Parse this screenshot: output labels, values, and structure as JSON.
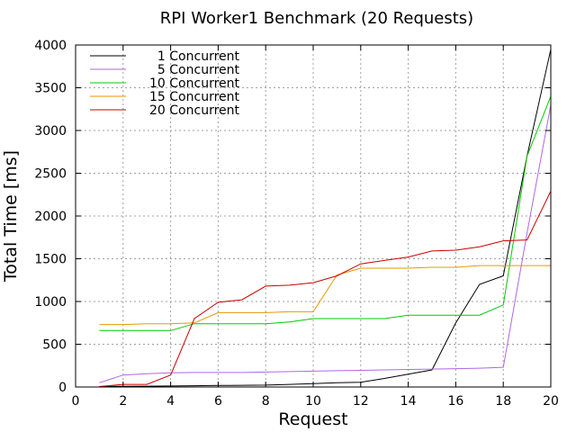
{
  "chart_data": {
    "type": "line",
    "title": "RPI Worker1 Benchmark (20 Requests)",
    "xlabel": "Request",
    "ylabel": "Total Time [ms]",
    "xlim": [
      0,
      20
    ],
    "ylim": [
      0,
      4000
    ],
    "xticks": [
      0,
      2,
      4,
      6,
      8,
      10,
      12,
      14,
      16,
      18,
      20
    ],
    "yticks": [
      0,
      500,
      1000,
      1500,
      2000,
      2500,
      3000,
      3500,
      4000
    ],
    "grid": true,
    "legend_position": "top-left",
    "x": [
      1,
      2,
      3,
      4,
      5,
      6,
      7,
      8,
      9,
      10,
      11,
      12,
      13,
      14,
      15,
      16,
      17,
      18,
      19,
      20
    ],
    "series": [
      {
        "name": "1 Concurrent",
        "color": "#000000",
        "values": [
          5,
          8,
          10,
          12,
          15,
          18,
          20,
          22,
          30,
          40,
          50,
          55,
          100,
          150,
          200,
          750,
          1200,
          1300,
          2700,
          3950
        ]
      },
      {
        "name": "5 Concurrent",
        "color": "#b266e6",
        "values": [
          50,
          140,
          155,
          165,
          170,
          170,
          170,
          175,
          180,
          185,
          190,
          195,
          200,
          205,
          210,
          215,
          220,
          230,
          1800,
          3300
        ]
      },
      {
        "name": "10 Concurrent",
        "color": "#00cc00",
        "values": [
          660,
          660,
          660,
          660,
          740,
          740,
          740,
          740,
          760,
          800,
          800,
          800,
          800,
          840,
          840,
          840,
          840,
          960,
          2700,
          3400
        ]
      },
      {
        "name": "15 Concurrent",
        "color": "#e69900",
        "values": [
          730,
          730,
          740,
          740,
          750,
          870,
          870,
          870,
          880,
          880,
          1310,
          1390,
          1390,
          1390,
          1400,
          1400,
          1420,
          1420,
          1420,
          1420
        ]
      },
      {
        "name": "20 Concurrent",
        "color": "#cc0000",
        "values": [
          5,
          30,
          30,
          140,
          800,
          990,
          1020,
          1180,
          1190,
          1220,
          1300,
          1440,
          1480,
          1520,
          1590,
          1600,
          1640,
          1710,
          1720,
          2290
        ]
      }
    ]
  }
}
